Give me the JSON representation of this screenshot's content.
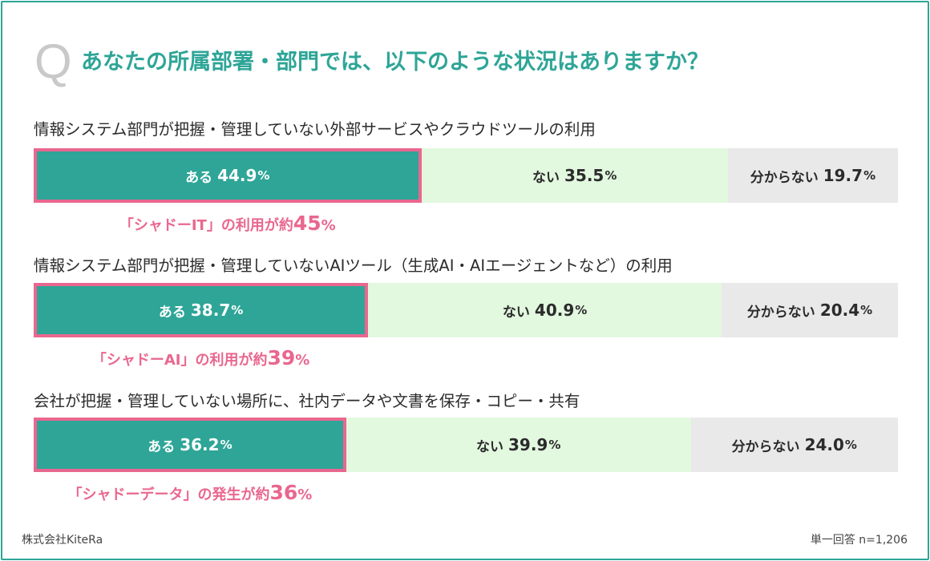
{
  "header": {
    "q_mark": "Q",
    "question": "あなたの所属部署・部門では、以下のような状況はありますか？"
  },
  "colors": {
    "accent": "#2ea597",
    "highlight": "#e9678f",
    "no_fill": "#e2f8df",
    "dont_know_fill": "#e9e9e9"
  },
  "chart_data": {
    "type": "bar",
    "orientation": "horizontal-stacked-100",
    "unit": "%",
    "legend": "inline",
    "grid": false,
    "categories": [
      "情報システム部門が把握・管理していない外部サービスやクラウドツールの利用",
      "情報システム部門が把握・管理していないAIツール（生成AI・AIエージェントなど）の利用",
      "会社が把握・管理していない場所に、社内データや文書を保存・コピー・共有"
    ],
    "series": [
      {
        "name": "ある",
        "values": [
          44.9,
          38.7,
          36.2
        ]
      },
      {
        "name": "ない",
        "values": [
          35.5,
          40.9,
          39.9
        ]
      },
      {
        "name": "分からない",
        "values": [
          19.7,
          20.4,
          24.0
        ]
      }
    ],
    "value_labels": [
      [
        "44.9",
        "35.5",
        "19.7"
      ],
      [
        "38.7",
        "40.9",
        "20.4"
      ],
      [
        "36.2",
        "39.9",
        "24.0"
      ]
    ],
    "annotations": [
      {
        "text": "「シャドーIT」の利用が約",
        "value": "45",
        "unit": "%"
      },
      {
        "text": "「シャドーAI」の利用が約",
        "value": "39",
        "unit": "%"
      },
      {
        "text": "「シャドーデータ」の発生が約",
        "value": "36",
        "unit": "%"
      }
    ]
  },
  "footer": {
    "company": "株式会社KiteRa",
    "sample": "単一回答 n=1,206"
  }
}
